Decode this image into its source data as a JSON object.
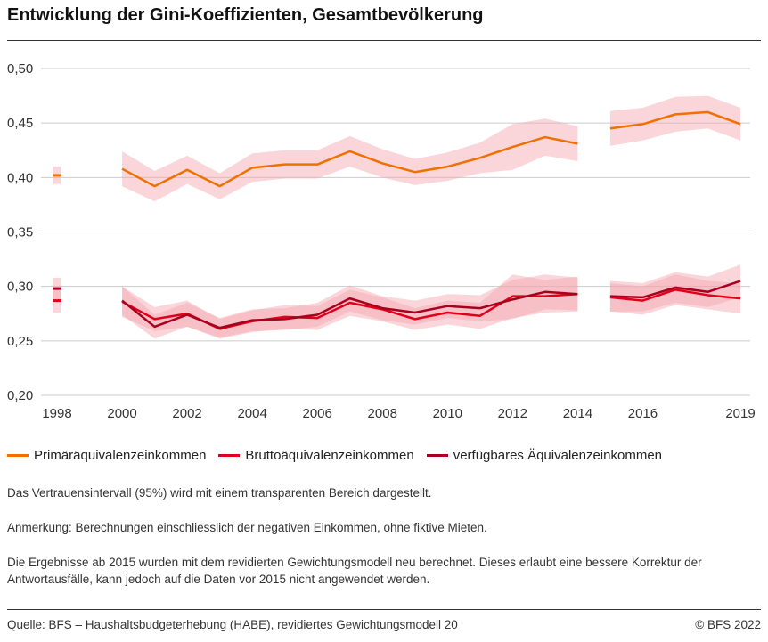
{
  "title": "Entwicklung der Gini-Koeffizienten, Gesamtbevölkerung",
  "chart_data": {
    "type": "line",
    "title": "Entwicklung der Gini-Koeffizienten, Gesamtbevölkerung",
    "ylim": [
      0.2,
      0.5
    ],
    "y_ticks": [
      "0,50",
      "0,45",
      "0,40",
      "0,35",
      "0,30",
      "0,25",
      "0,20"
    ],
    "y_tick_values": [
      0.5,
      0.45,
      0.4,
      0.35,
      0.3,
      0.25,
      0.2
    ],
    "x_ticks": [
      "1998",
      "2000",
      "2002",
      "2004",
      "2006",
      "2008",
      "2010",
      "2012",
      "2014",
      "2016",
      "2019"
    ],
    "x_tick_values": [
      1998,
      2000,
      2002,
      2004,
      2006,
      2008,
      2010,
      2012,
      2014,
      2016,
      2019
    ],
    "grid": true,
    "legend_position": "bottom",
    "x": [
      1998,
      2000,
      2001,
      2002,
      2003,
      2004,
      2005,
      2006,
      2007,
      2008,
      2009,
      2010,
      2011,
      2012,
      2013,
      2014,
      2015,
      2016,
      2017,
      2018,
      2019
    ],
    "series": [
      {
        "name": "Primäräquivalenzeinkommen",
        "color": "#f07100",
        "values": [
          0.402,
          0.408,
          0.392,
          0.407,
          0.392,
          0.409,
          0.412,
          0.412,
          0.424,
          0.413,
          0.405,
          0.41,
          0.418,
          0.428,
          0.437,
          0.431,
          0.445,
          0.449,
          0.458,
          0.46,
          0.449
        ],
        "ci_halfwidth": [
          0.008,
          0.016,
          0.014,
          0.013,
          0.012,
          0.013,
          0.013,
          0.013,
          0.014,
          0.013,
          0.012,
          0.013,
          0.014,
          0.021,
          0.017,
          0.016,
          0.016,
          0.015,
          0.016,
          0.015,
          0.015
        ]
      },
      {
        "name": "Bruttoäquivalenzeinkommen",
        "color": "#e1001a",
        "values": [
          0.287,
          0.286,
          0.27,
          0.275,
          0.261,
          0.268,
          0.272,
          0.271,
          0.285,
          0.279,
          0.27,
          0.276,
          0.273,
          0.291,
          0.291,
          0.293,
          0.29,
          0.287,
          0.297,
          0.292,
          0.289
        ],
        "ci_halfwidth": [
          0.011,
          0.014,
          0.011,
          0.012,
          0.009,
          0.01,
          0.011,
          0.011,
          0.012,
          0.011,
          0.01,
          0.011,
          0.012,
          0.02,
          0.015,
          0.016,
          0.013,
          0.013,
          0.014,
          0.013,
          0.014
        ]
      },
      {
        "name": "verfügbares Äquivalenzeinkommen",
        "color": "#a8001f",
        "values": [
          0.298,
          0.287,
          0.263,
          0.274,
          0.262,
          0.269,
          0.27,
          0.274,
          0.289,
          0.28,
          0.276,
          0.282,
          0.28,
          0.288,
          0.295,
          0.293,
          0.291,
          0.29,
          0.299,
          0.295,
          0.305
        ],
        "ci_halfwidth": [
          0.01,
          0.013,
          0.011,
          0.011,
          0.009,
          0.01,
          0.01,
          0.011,
          0.012,
          0.011,
          0.011,
          0.011,
          0.012,
          0.018,
          0.016,
          0.015,
          0.014,
          0.013,
          0.014,
          0.014,
          0.015
        ]
      }
    ],
    "band_color": "#f4a3ad",
    "gaps_after": [
      1998,
      2014
    ]
  },
  "legend": [
    "Primäräquivalenzeinkommen",
    "Bruttoäquivalenzeinkommen",
    "verfügbares Äquivalenzeinkommen"
  ],
  "notes": {
    "ci": "Das Vertrauensintervall (95%) wird mit einem transparenten Bereich dargestellt.",
    "remark": "Anmerkung: Berechnungen einschliesslich der negativen Einkommen, ohne fiktive Mieten.",
    "revision": "Die Ergebnisse ab 2015 wurden mit dem revidierten Gewichtungsmodell neu berechnet. Dieses erlaubt eine bessere Korrektur der Antwortausfälle, kann jedoch auf die Daten vor 2015 nicht angewendet werden."
  },
  "source": "Quelle: BFS – Haushaltsbudgeterhebung (HABE), revidiertes Gewichtungsmodell 20",
  "copyright": "© BFS 2022"
}
